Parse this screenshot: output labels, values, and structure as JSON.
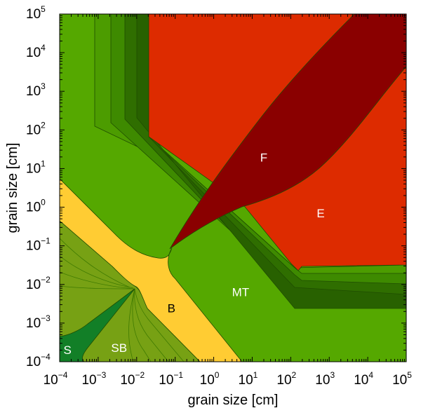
{
  "chart_data": {
    "type": "heatmap",
    "title": "",
    "xlabel": "grain size [cm]",
    "ylabel": "grain size [cm]",
    "xscale": "log",
    "yscale": "log",
    "xlim": [
      0.0001,
      100000
    ],
    "ylim": [
      0.0001,
      100000
    ],
    "x_ticks": [
      {
        "base": "10",
        "exp": "−4"
      },
      {
        "base": "10",
        "exp": "−3"
      },
      {
        "base": "10",
        "exp": "−2"
      },
      {
        "base": "10",
        "exp": "−1"
      },
      {
        "base": "10",
        "exp": "0"
      },
      {
        "base": "10",
        "exp": "1"
      },
      {
        "base": "10",
        "exp": "2"
      },
      {
        "base": "10",
        "exp": "3"
      },
      {
        "base": "10",
        "exp": "4"
      },
      {
        "base": "10",
        "exp": "5"
      }
    ],
    "y_ticks": [
      {
        "base": "10",
        "exp": "−4"
      },
      {
        "base": "10",
        "exp": "−3"
      },
      {
        "base": "10",
        "exp": "−2"
      },
      {
        "base": "10",
        "exp": "−1"
      },
      {
        "base": "10",
        "exp": "0"
      },
      {
        "base": "10",
        "exp": "1"
      },
      {
        "base": "10",
        "exp": "2"
      },
      {
        "base": "10",
        "exp": "3"
      },
      {
        "base": "10",
        "exp": "4"
      },
      {
        "base": "10",
        "exp": "5"
      }
    ],
    "grid": false,
    "regions": [
      {
        "label": "S",
        "x": 0.00016,
        "y": 0.00016,
        "label_color": "#ffffff"
      },
      {
        "label": "SB",
        "x": 0.0035,
        "y": 0.00018,
        "label_color": "#ffffff"
      },
      {
        "label": "B",
        "x": 0.08,
        "y": 0.0019,
        "label_color": "#000000"
      },
      {
        "label": "MT",
        "x": 5,
        "y": 0.005,
        "label_color": "#ffffff"
      },
      {
        "label": "F",
        "x": 20,
        "y": 15,
        "label_color": "#ffffff"
      },
      {
        "label": "E",
        "x": 600,
        "y": 0.55,
        "label_color": "#ffffff"
      }
    ],
    "colors": {
      "bouncing": "#ffcc33",
      "mass_transfer": "#55a800",
      "sticking": "#127f27",
      "sticking_bouncing": "#77a114",
      "erosion": "#dd2b00",
      "fragmentation": "#8a0000",
      "contour_line": "#1f4d00"
    }
  }
}
